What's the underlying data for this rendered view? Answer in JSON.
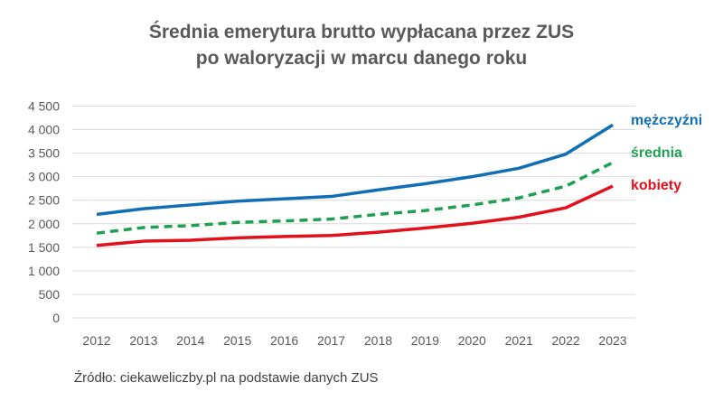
{
  "chart_data": {
    "type": "line",
    "title": "Średnia emerytura brutto wypłacana przez ZUS",
    "subtitle": "po waloryzacji w marcu danego roku",
    "source": "Źródło: ciekaweliczby.pl na podstawie danych ZUS",
    "x": [
      2012,
      2013,
      2014,
      2015,
      2016,
      2017,
      2018,
      2019,
      2020,
      2021,
      2022,
      2023
    ],
    "ylim": [
      0,
      4500
    ],
    "yticks": [
      0,
      500,
      1000,
      1500,
      2000,
      2500,
      3000,
      3500,
      4000,
      4500
    ],
    "ytick_labels": [
      "0",
      "500",
      "1 000",
      "1 500",
      "2 000",
      "2 500",
      "3 000",
      "3 500",
      "4 000",
      "4 500"
    ],
    "grid": true,
    "legend": "right, labels at line ends",
    "series": [
      {
        "name": "mężczyźni",
        "color": "#0F6EB4",
        "dash": false,
        "values": [
          2200,
          2320,
          2400,
          2480,
          2530,
          2580,
          2720,
          2850,
          3000,
          3180,
          3480,
          4100
        ]
      },
      {
        "name": "średnia",
        "color": "#1DA050",
        "dash": true,
        "values": [
          1800,
          1920,
          1960,
          2030,
          2060,
          2100,
          2200,
          2280,
          2400,
          2550,
          2800,
          3300
        ]
      },
      {
        "name": "kobiety",
        "color": "#E3101B",
        "dash": false,
        "values": [
          1540,
          1630,
          1650,
          1700,
          1730,
          1750,
          1820,
          1910,
          2010,
          2140,
          2340,
          2800
        ]
      }
    ]
  }
}
